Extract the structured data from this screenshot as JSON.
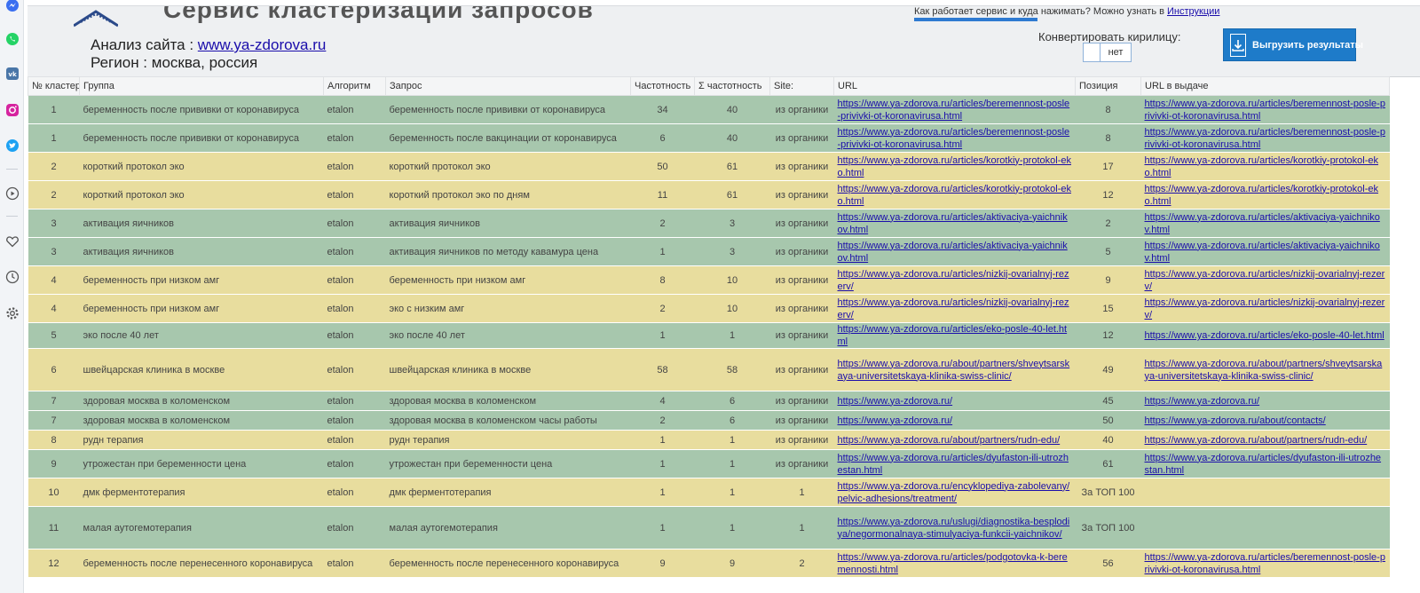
{
  "header": {
    "service_title": "Сервис кластеризации запросов",
    "help_text": "Как работает сервис и куда нажимать? Можно узнать в ",
    "help_link": "Инструкции",
    "site_label": "Анализ сайта : ",
    "site_url": "www.ya-zdorova.ru",
    "region_text": "Регион : москва, россия",
    "convert_label": "Конвертировать кирилицу:",
    "toggle_no": "нет",
    "export_label": "Выгрузить результаты"
  },
  "columns": [
    "№ кластер",
    "Группа",
    "Алгоритм",
    "Запрос",
    "Частотность",
    "Σ частотность",
    "Site:",
    "URL",
    "Позиция",
    "URL в выдаче"
  ],
  "rows": [
    {
      "color": "green",
      "cluster": "1",
      "group": "беременность после прививки от коронавируса",
      "algo": "etalon",
      "query": "беременность после прививки от коронавируса",
      "freq": "34",
      "sum": "40",
      "site": "из органики",
      "url": "https://www.ya-zdorova.ru/articles/beremennost-posle-privivki-ot-koronavirusa.html",
      "pos": "8",
      "url_serp": "https://www.ya-zdorova.ru/articles/beremennost-posle-privivki-ot-koronavirusa.html"
    },
    {
      "color": "green",
      "cluster": "1",
      "group": "беременность после прививки от коронавируса",
      "algo": "etalon",
      "query": "беременность после вакцинации от коронавируса",
      "freq": "6",
      "sum": "40",
      "site": "из органики",
      "url": "https://www.ya-zdorova.ru/articles/beremennost-posle-privivki-ot-koronavirusa.html",
      "pos": "8",
      "url_serp": "https://www.ya-zdorova.ru/articles/beremennost-posle-privivki-ot-koronavirusa.html"
    },
    {
      "color": "yellow",
      "cluster": "2",
      "group": "короткий протокол эко",
      "algo": "etalon",
      "query": "короткий протокол эко",
      "freq": "50",
      "sum": "61",
      "site": "из органики",
      "url": "https://www.ya-zdorova.ru/articles/korotkiy-protokol-eko.html",
      "pos": "17",
      "url_serp": "https://www.ya-zdorova.ru/articles/korotkiy-protokol-eko.html"
    },
    {
      "color": "yellow",
      "cluster": "2",
      "group": "короткий протокол эко",
      "algo": "etalon",
      "query": "короткий протокол эко по дням",
      "freq": "11",
      "sum": "61",
      "site": "из органики",
      "url": "https://www.ya-zdorova.ru/articles/korotkiy-protokol-eko.html",
      "pos": "12",
      "url_serp": "https://www.ya-zdorova.ru/articles/korotkiy-protokol-eko.html"
    },
    {
      "color": "green",
      "cluster": "3",
      "group": "активация яичников",
      "algo": "etalon",
      "query": "активация яичников",
      "freq": "2",
      "sum": "3",
      "site": "из органики",
      "url": "https://www.ya-zdorova.ru/articles/aktivaciya-yaichnikov.html",
      "pos": "2",
      "url_serp": "https://www.ya-zdorova.ru/articles/aktivaciya-yaichnikov.html"
    },
    {
      "color": "green",
      "cluster": "3",
      "group": "активация яичников",
      "algo": "etalon",
      "query": "активация яичников по методу кавамура цена",
      "freq": "1",
      "sum": "3",
      "site": "из органики",
      "url": "https://www.ya-zdorova.ru/articles/aktivaciya-yaichnikov.html",
      "pos": "5",
      "url_serp": "https://www.ya-zdorova.ru/articles/aktivaciya-yaichnikov.html"
    },
    {
      "color": "yellow",
      "cluster": "4",
      "group": "беременность при низком амг",
      "algo": "etalon",
      "query": "беременность при низком амг",
      "freq": "8",
      "sum": "10",
      "site": "из органики",
      "url": "https://www.ya-zdorova.ru/articles/nizkij-ovarialnyj-rezerv/",
      "pos": "9",
      "url_serp": "https://www.ya-zdorova.ru/articles/nizkij-ovarialnyj-rezerv/"
    },
    {
      "color": "yellow",
      "cluster": "4",
      "group": "беременность при низком амг",
      "algo": "etalon",
      "query": "эко с низким амг",
      "freq": "2",
      "sum": "10",
      "site": "из органики",
      "url": "https://www.ya-zdorova.ru/articles/nizkij-ovarialnyj-rezerv/",
      "pos": "15",
      "url_serp": "https://www.ya-zdorova.ru/articles/nizkij-ovarialnyj-rezerv/"
    },
    {
      "color": "green",
      "cluster": "5",
      "group": "эко после 40 лет",
      "algo": "etalon",
      "query": "эко после 40 лет",
      "freq": "1",
      "sum": "1",
      "site": "из органики",
      "url": "https://www.ya-zdorova.ru/articles/eko-posle-40-let.html",
      "pos": "12",
      "url_serp": "https://www.ya-zdorova.ru/articles/eko-posle-40-let.html"
    },
    {
      "color": "yellow",
      "cluster": "6",
      "group": "швейцарская клиника в москве",
      "algo": "etalon",
      "query": "швейцарская клиника в москве",
      "freq": "58",
      "sum": "58",
      "site": "из органики",
      "url": "https://www.ya-zdorova.ru/about/partners/shveytsarskaya-universitetskaya-klinika-swiss-clinic/",
      "pos": "49",
      "url_serp": "https://www.ya-zdorova.ru/about/partners/shveytsarskaya-universitetskaya-klinika-swiss-clinic/"
    },
    {
      "color": "green",
      "cluster": "7",
      "group": "здоровая москва в коломенском",
      "algo": "etalon",
      "query": "здоровая москва в коломенском",
      "freq": "4",
      "sum": "6",
      "site": "из органики",
      "url": "https://www.ya-zdorova.ru/",
      "pos": "45",
      "url_serp": "https://www.ya-zdorova.ru/"
    },
    {
      "color": "green",
      "cluster": "7",
      "group": "здоровая москва в коломенском",
      "algo": "etalon",
      "query": "здоровая москва в коломенском часы работы",
      "freq": "2",
      "sum": "6",
      "site": "из органики",
      "url": "https://www.ya-zdorova.ru/",
      "pos": "50",
      "url_serp": "https://www.ya-zdorova.ru/about/contacts/"
    },
    {
      "color": "yellow",
      "cluster": "8",
      "group": "рудн терапия",
      "algo": "etalon",
      "query": "рудн терапия",
      "freq": "1",
      "sum": "1",
      "site": "из органики",
      "url": "https://www.ya-zdorova.ru/about/partners/rudn-edu/",
      "pos": "40",
      "url_serp": "https://www.ya-zdorova.ru/about/partners/rudn-edu/"
    },
    {
      "color": "green",
      "cluster": "9",
      "group": "утрожестан при беременности цена",
      "algo": "etalon",
      "query": "утрожестан при беременности цена",
      "freq": "1",
      "sum": "1",
      "site": "из органики",
      "url": "https://www.ya-zdorova.ru/articles/dyufaston-ili-utrozhestan.html",
      "pos": "61",
      "url_serp": "https://www.ya-zdorova.ru/articles/dyufaston-ili-utrozhestan.html"
    },
    {
      "color": "yellow",
      "cluster": "10",
      "group": "дмк ферментотерапия",
      "algo": "etalon",
      "query": "дмк ферментотерапия",
      "freq": "1",
      "sum": "1",
      "site": "1",
      "url": "https://www.ya-zdorova.ru/encyklopediya-zabolevany/pelvic-adhesions/treatment/",
      "pos": "За ТОП 100",
      "url_serp": ""
    },
    {
      "color": "green",
      "cluster": "11",
      "group": "малая аутогемотерапия",
      "algo": "etalon",
      "query": "малая аутогемотерапия",
      "freq": "1",
      "sum": "1",
      "site": "1",
      "url": "https://www.ya-zdorova.ru/uslugi/diagnostika-besplodiya/negormonalnaya-stimulyaciya-funkcii-yaichnikov/",
      "pos": "За ТОП 100",
      "url_serp": ""
    },
    {
      "color": "yellow",
      "cluster": "12",
      "group": "беременность после перенесенного коронавируса",
      "algo": "etalon",
      "query": "беременность после перенесенного коронавируса",
      "freq": "9",
      "sum": "9",
      "site": "2",
      "url": "https://www.ya-zdorova.ru/articles/podgotovka-k-beremennosti.html",
      "pos": "56",
      "url_serp": "https://www.ya-zdorova.ru/articles/beremennost-posle-privivki-ot-koronavirusa.html"
    }
  ],
  "sidebar": {
    "icons": [
      "messenger-icon",
      "whatsapp-icon",
      "vk-icon",
      "instagram-icon",
      "twitter-icon",
      "play-icon",
      "heart-icon",
      "clock-icon",
      "gear-icon"
    ]
  },
  "colors": {
    "green_row": "#a7c7ad",
    "yellow_row": "#e8dd9e",
    "accent": "#1e7bc9"
  }
}
